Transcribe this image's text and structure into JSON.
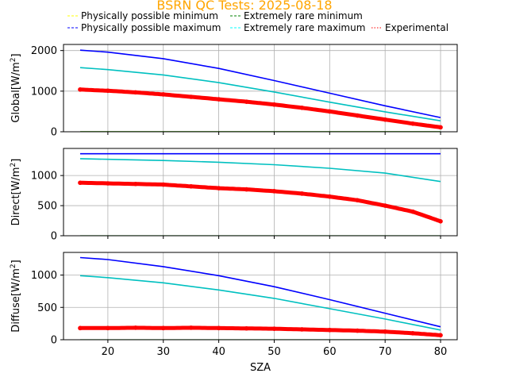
{
  "title": "BSRN QC Tests: 2025-08-18",
  "title_color": "#ffa500",
  "legend": [
    {
      "label": "Physically possible minimum",
      "color": "#ffff00",
      "style": "dashed"
    },
    {
      "label": "Physically possible maximum",
      "color": "#0000ff",
      "style": "dashed"
    },
    {
      "label": "Extremely rare minimum",
      "color": "#008000",
      "style": "dashed"
    },
    {
      "label": "Extremely rare maximum",
      "color": "#00ffff",
      "style": "dashed"
    },
    {
      "label": "Experimental",
      "color": "#ff0000",
      "style": "dotted"
    }
  ],
  "xlabel": "SZA",
  "chart_data": [
    {
      "type": "line",
      "ylabel_main": "Global[W/m",
      "ylabel_sup": "2",
      "ylabel_end": "]",
      "xlim": [
        12,
        83
      ],
      "ylim": [
        0,
        2150
      ],
      "xticks": [
        20,
        30,
        40,
        50,
        60,
        70,
        80
      ],
      "yticks": [
        0,
        1000,
        2000
      ],
      "grid": true,
      "series": [
        {
          "name": "Physically possible minimum",
          "color": "#ffff00",
          "x": [
            15,
            80
          ],
          "y": [
            -4,
            -4
          ]
        },
        {
          "name": "Physically possible maximum",
          "color": "#0000ff",
          "x": [
            15,
            20,
            30,
            40,
            50,
            60,
            70,
            80
          ],
          "y": [
            2010,
            1960,
            1800,
            1560,
            1260,
            950,
            640,
            350
          ]
        },
        {
          "name": "Extremely rare minimum",
          "color": "#008000",
          "x": [
            15,
            80
          ],
          "y": [
            -2,
            -2
          ]
        },
        {
          "name": "Extremely rare maximum",
          "color": "#00c0c0",
          "x": [
            15,
            20,
            30,
            40,
            50,
            60,
            70,
            80
          ],
          "y": [
            1580,
            1530,
            1400,
            1210,
            980,
            730,
            490,
            270
          ]
        },
        {
          "name": "Experimental",
          "color": "#ff0000",
          "scatter": true,
          "x": [
            15,
            20,
            25,
            30,
            35,
            40,
            45,
            50,
            55,
            60,
            65,
            70,
            75,
            80
          ],
          "y": [
            1040,
            1010,
            970,
            920,
            860,
            800,
            740,
            670,
            590,
            500,
            400,
            300,
            200,
            110
          ]
        }
      ]
    },
    {
      "type": "line",
      "ylabel_main": "Direct[W/m",
      "ylabel_sup": "2",
      "ylabel_end": "]",
      "xlim": [
        12,
        83
      ],
      "ylim": [
        0,
        1450
      ],
      "xticks": [
        20,
        30,
        40,
        50,
        60,
        70,
        80
      ],
      "yticks": [
        0,
        500,
        1000
      ],
      "grid": true,
      "series": [
        {
          "name": "Physically possible minimum",
          "color": "#ffff00",
          "x": [
            15,
            80
          ],
          "y": [
            -4,
            -4
          ]
        },
        {
          "name": "Physically possible maximum",
          "color": "#0000ff",
          "x": [
            15,
            80
          ],
          "y": [
            1362,
            1362
          ]
        },
        {
          "name": "Extremely rare minimum",
          "color": "#008000",
          "x": [
            15,
            80
          ],
          "y": [
            -2,
            -2
          ]
        },
        {
          "name": "Extremely rare maximum",
          "color": "#00c0c0",
          "x": [
            15,
            20,
            30,
            40,
            50,
            60,
            70,
            80
          ],
          "y": [
            1280,
            1270,
            1250,
            1220,
            1180,
            1120,
            1040,
            900
          ]
        },
        {
          "name": "Experimental",
          "color": "#ff0000",
          "scatter": true,
          "x": [
            15,
            20,
            25,
            30,
            35,
            40,
            45,
            50,
            55,
            60,
            65,
            70,
            75,
            80
          ],
          "y": [
            880,
            870,
            860,
            850,
            820,
            790,
            770,
            740,
            700,
            650,
            590,
            500,
            400,
            240
          ]
        }
      ]
    },
    {
      "type": "line",
      "ylabel_main": "Diffuse[W/m",
      "ylabel_sup": "2",
      "ylabel_end": "]",
      "xlim": [
        12,
        83
      ],
      "ylim": [
        0,
        1350
      ],
      "xticks": [
        20,
        30,
        40,
        50,
        60,
        70,
        80
      ],
      "xticklabels": [
        "20",
        "30",
        "40",
        "50",
        "60",
        "70",
        "80"
      ],
      "yticks": [
        0,
        500,
        1000
      ],
      "grid": true,
      "series": [
        {
          "name": "Physically possible minimum",
          "color": "#ffff00",
          "x": [
            15,
            80
          ],
          "y": [
            -4,
            -4
          ]
        },
        {
          "name": "Physically possible maximum",
          "color": "#0000ff",
          "x": [
            15,
            20,
            30,
            40,
            50,
            60,
            70,
            80
          ],
          "y": [
            1270,
            1240,
            1130,
            990,
            820,
            620,
            410,
            200
          ]
        },
        {
          "name": "Extremely rare minimum",
          "color": "#008000",
          "x": [
            15,
            80
          ],
          "y": [
            -2,
            -2
          ]
        },
        {
          "name": "Extremely rare maximum",
          "color": "#00c0c0",
          "x": [
            15,
            20,
            30,
            40,
            50,
            60,
            70,
            80
          ],
          "y": [
            990,
            960,
            880,
            770,
            640,
            480,
            320,
            150
          ]
        },
        {
          "name": "Experimental",
          "color": "#ff0000",
          "scatter": true,
          "x": [
            15,
            20,
            25,
            30,
            35,
            40,
            45,
            50,
            55,
            60,
            65,
            70,
            75,
            80
          ],
          "y": [
            180,
            180,
            185,
            180,
            185,
            180,
            175,
            170,
            160,
            150,
            140,
            125,
            100,
            70
          ]
        }
      ]
    }
  ]
}
